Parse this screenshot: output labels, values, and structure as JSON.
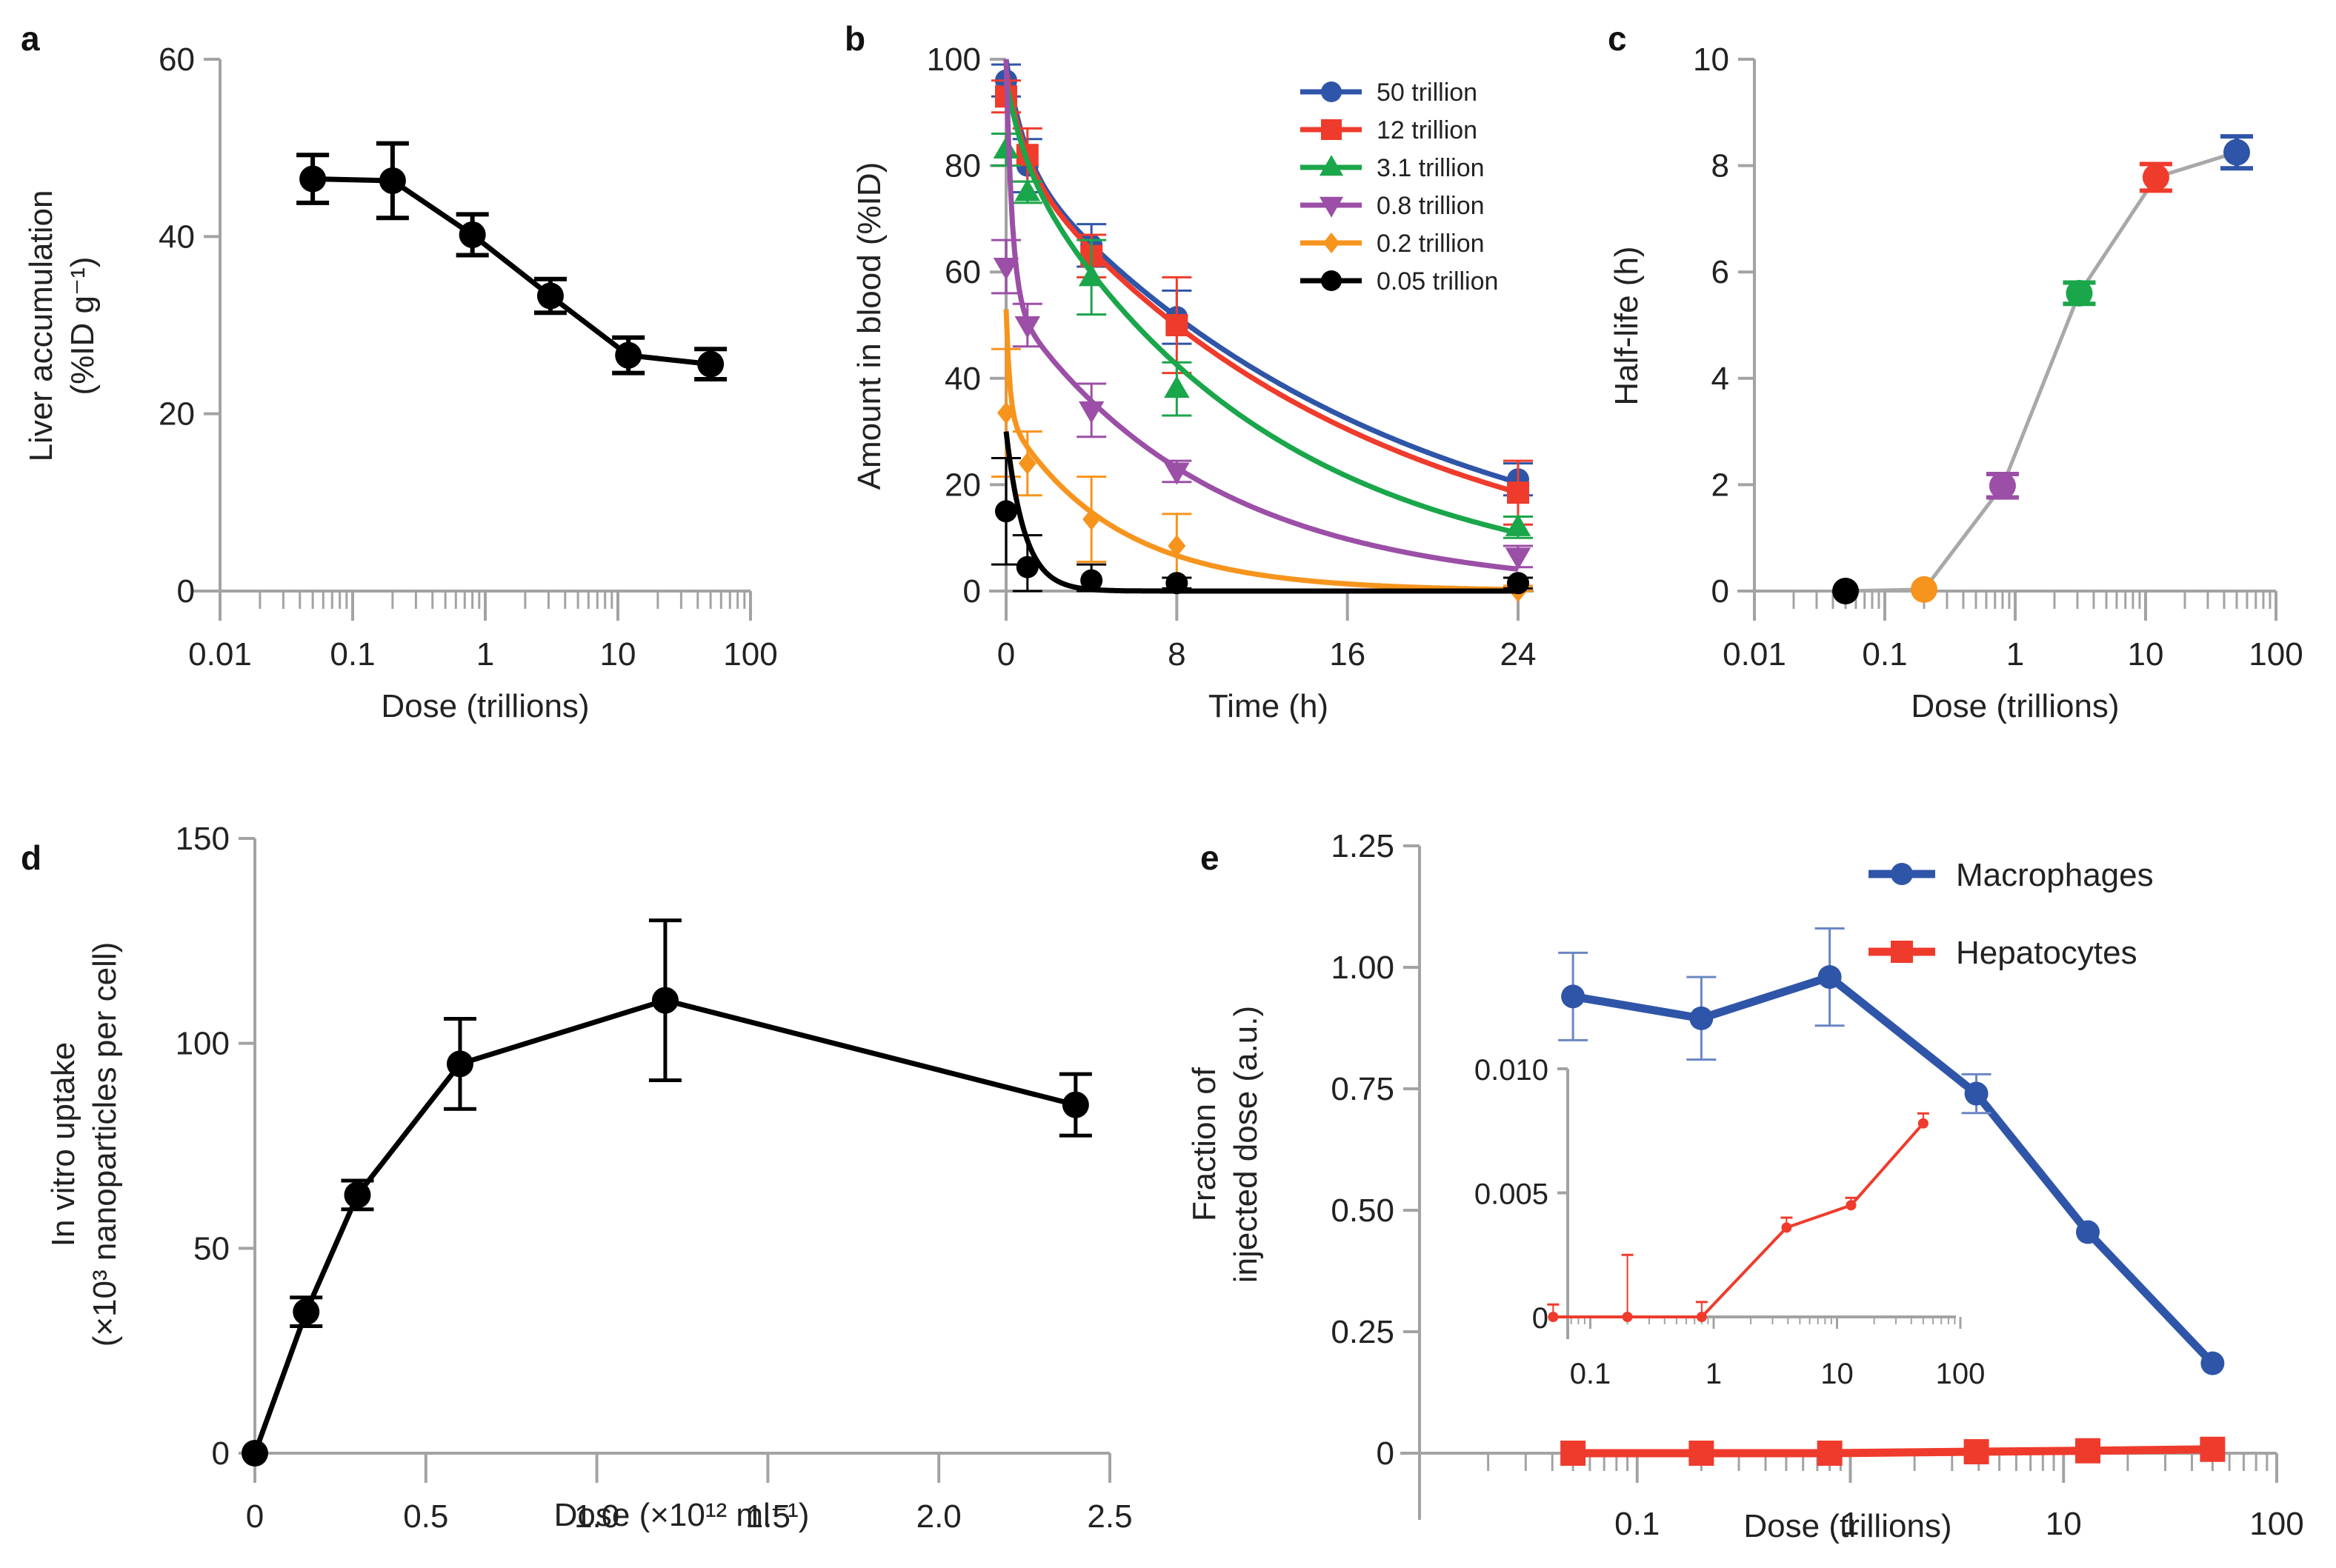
{
  "figure": {
    "panels": [
      "a",
      "b",
      "c",
      "d",
      "e"
    ]
  },
  "chart_data": [
    {
      "id": "a",
      "panel_label": "a",
      "type": "line",
      "xscale": "log",
      "xlabel": "Dose (trillions)",
      "ylabel_line1": "Liver accumulation",
      "ylabel_line2": "(%ID g⁻¹)",
      "xlim": [
        0.01,
        100
      ],
      "ylim": [
        0,
        60
      ],
      "xticks": [
        0.01,
        0.1,
        1,
        10,
        100
      ],
      "xtick_labels": [
        "0.01",
        "0.1",
        "1",
        "10",
        "100"
      ],
      "yticks": [
        0,
        20,
        40,
        60
      ],
      "ytick_labels": [
        "0",
        "20",
        "40",
        "60"
      ],
      "grid": false,
      "series": [
        {
          "name": "Liver accumulation",
          "color": "#000000",
          "marker": "circle",
          "x": [
            0.05,
            0.2,
            0.8,
            3.1,
            12,
            50
          ],
          "y": [
            46.5,
            46.3,
            40.2,
            33.3,
            26.6,
            25.6
          ],
          "err": [
            2.7,
            4.2,
            2.3,
            1.9,
            2.0,
            1.7
          ]
        }
      ]
    },
    {
      "id": "b",
      "panel_label": "b",
      "type": "line",
      "xscale": "linear",
      "xlabel": "Time (h)",
      "ylabel_line1": "Amount in blood (%ID)",
      "xlim": [
        0,
        24
      ],
      "ylim": [
        0,
        100
      ],
      "xticks": [
        0,
        8,
        16,
        24
      ],
      "xtick_labels": [
        "0",
        "8",
        "16",
        "24"
      ],
      "yticks": [
        0,
        20,
        40,
        60,
        80,
        100
      ],
      "ytick_labels": [
        "0",
        "20",
        "40",
        "60",
        "80",
        "100"
      ],
      "grid": false,
      "legend_position": "top-right",
      "series": [
        {
          "name": "50 trillion",
          "color": "#2f55a8",
          "marker": "circle",
          "x": [
            0,
            1,
            4,
            8,
            24
          ],
          "y": [
            96,
            80,
            65,
            51.5,
            21
          ],
          "err": [
            3,
            5,
            4,
            5,
            3
          ],
          "fit": {
            "A": 18,
            "alpha": 1.2,
            "B": 82,
            "beta": 0.058
          }
        },
        {
          "name": "12 trillion",
          "color": "#ef3b2c",
          "marker": "square",
          "x": [
            0,
            1,
            4,
            8,
            24
          ],
          "y": [
            93,
            82,
            63,
            50,
            18.5
          ],
          "err": [
            3,
            5,
            4,
            9,
            6
          ],
          "fit": {
            "A": 16,
            "alpha": 1.2,
            "B": 82,
            "beta": 0.062
          }
        },
        {
          "name": "3.1 trillion",
          "color": "#1aa64a",
          "marker": "triangle-up",
          "x": [
            0,
            1,
            4,
            8,
            24
          ],
          "y": [
            83,
            75,
            59,
            38,
            12
          ],
          "err": [
            3,
            2,
            7,
            5,
            2
          ],
          "fit": {
            "A": 12,
            "alpha": 1.2,
            "B": 84,
            "beta": 0.085
          }
        },
        {
          "name": "0.8 trillion",
          "color": "#9b4fa6",
          "marker": "triangle-down",
          "x": [
            0,
            1,
            4,
            8,
            24
          ],
          "y": [
            61,
            50,
            34,
            22.5,
            6.5
          ],
          "err": [
            5,
            4,
            5,
            2,
            2
          ],
          "fit": {
            "A": 45,
            "alpha": 3.5,
            "B": 55,
            "beta": 0.108
          }
        },
        {
          "name": "0.2 trillion",
          "color": "#f7941d",
          "marker": "diamond",
          "x": [
            0,
            1,
            4,
            8,
            24
          ],
          "y": [
            33.5,
            24,
            13.5,
            8.5,
            0
          ],
          "err": [
            12,
            6,
            8,
            6,
            1
          ],
          "fit": {
            "A": 20,
            "alpha": 6,
            "B": 33,
            "beta": 0.2
          }
        },
        {
          "name": "0.05 trillion",
          "color": "#000000",
          "marker": "circle",
          "x": [
            0,
            1,
            4,
            8,
            24
          ],
          "y": [
            15,
            4.5,
            2,
            1.5,
            1.5
          ],
          "err": [
            10,
            6,
            3,
            1,
            1
          ],
          "fit": {
            "A": 0,
            "alpha": 1,
            "B": 30,
            "beta": 1.15
          }
        }
      ]
    },
    {
      "id": "c",
      "panel_label": "c",
      "type": "line",
      "xscale": "log",
      "xlabel": "Dose (trillions)",
      "ylabel_line1": "Half-life (h)",
      "xlim": [
        0.01,
        100
      ],
      "ylim": [
        0,
        10
      ],
      "xticks": [
        0.01,
        0.1,
        1,
        10,
        100
      ],
      "xtick_labels": [
        "0.01",
        "0.1",
        "1",
        "10",
        "100"
      ],
      "yticks": [
        0,
        2,
        4,
        6,
        8,
        10
      ],
      "ytick_labels": [
        "0",
        "2",
        "4",
        "6",
        "8",
        "10"
      ],
      "grid": false,
      "line_color": "#a8a8a8",
      "series": [
        {
          "name": "Half-life",
          "x": [
            0.05,
            0.2,
            0.8,
            3.1,
            12,
            50
          ],
          "y": [
            0.0,
            0.03,
            1.98,
            5.6,
            7.78,
            8.25
          ],
          "err": [
            0,
            0,
            0.22,
            0.2,
            0.25,
            0.3
          ],
          "point_colors": [
            "#000000",
            "#f7941d",
            "#9b4fa6",
            "#1aa64a",
            "#ef3b2c",
            "#2f55a8"
          ]
        }
      ]
    },
    {
      "id": "d",
      "panel_label": "d",
      "type": "line",
      "xscale": "linear",
      "xlabel": "Dose (×10¹² ml⁻¹)",
      "ylabel_line1": "In vitro uptake",
      "ylabel_line2": "(×10³ nanoparticles per cell)",
      "xlim": [
        0,
        2.5
      ],
      "ylim": [
        0,
        150
      ],
      "xticks": [
        0,
        0.5,
        1.0,
        1.5,
        2.0,
        2.5
      ],
      "xtick_labels": [
        "0",
        "0.5",
        "1.0",
        "1.5",
        "2.0",
        "2.5"
      ],
      "yticks": [
        0,
        50,
        100,
        150
      ],
      "ytick_labels": [
        "0",
        "50",
        "100",
        "150"
      ],
      "grid": false,
      "series": [
        {
          "name": "In vitro uptake",
          "color": "#000000",
          "marker": "circle",
          "x": [
            0,
            0.15,
            0.3,
            0.6,
            1.2,
            2.4
          ],
          "y": [
            0,
            34.5,
            63,
            95,
            110.5,
            85
          ],
          "err": [
            0,
            3.5,
            3.5,
            11,
            19.5,
            7.5
          ]
        }
      ]
    },
    {
      "id": "e",
      "panel_label": "e",
      "type": "line",
      "xscale": "log",
      "xlabel": "Dose (trillions)",
      "ylabel_line1": "Fraction of",
      "ylabel_line2": "injected dose (a.u.)",
      "xlim": [
        0.01,
        100
      ],
      "ylim": [
        0,
        1.25
      ],
      "xticks": [
        0.1,
        1,
        10,
        100
      ],
      "xtick_labels": [
        "0.1",
        "1",
        "10",
        "100"
      ],
      "yticks": [
        0,
        0.25,
        0.5,
        0.75,
        1.0,
        1.25
      ],
      "ytick_labels": [
        "0",
        "0.25",
        "0.50",
        "0.75",
        "1.00",
        "1.25"
      ],
      "grid": false,
      "legend_position": "top-right",
      "series": [
        {
          "name": "Macrophages",
          "color": "#2f55a8",
          "marker": "circle",
          "x": [
            0.05,
            0.2,
            0.8,
            3.9,
            13,
            50
          ],
          "y": [
            0.94,
            0.895,
            0.98,
            0.74,
            0.455,
            0.185
          ],
          "err": [
            0.09,
            0.085,
            0.1,
            0.04,
            0,
            0
          ]
        },
        {
          "name": "Hepatocytes",
          "color": "#ef3b2c",
          "marker": "square",
          "x": [
            0.05,
            0.2,
            0.8,
            3.9,
            13,
            50
          ],
          "y": [
            0,
            0,
            0,
            0.003,
            0.005,
            0.008
          ],
          "err": [
            0,
            0,
            0,
            0,
            0,
            0
          ]
        }
      ],
      "inset": {
        "series_name": "Hepatocytes",
        "color": "#ef3b2c",
        "xscale": "log",
        "xlim": [
          0.01,
          100
        ],
        "ylim": [
          0,
          0.01
        ],
        "xticks": [
          0.1,
          1,
          10,
          100
        ],
        "xtick_labels": [
          "0.1",
          "1",
          "10",
          "100"
        ],
        "yticks": [
          0,
          0.005,
          0.01
        ],
        "ytick_labels": [
          "0",
          "0.005",
          "0.010"
        ],
        "x": [
          0.05,
          0.2,
          0.8,
          3.9,
          13,
          50
        ],
        "y": [
          0,
          0,
          0,
          0.0036,
          0.0045,
          0.0078
        ],
        "err": [
          0.0005,
          0.0025,
          0.0006,
          0.0004,
          0.0003,
          0.0004
        ]
      }
    }
  ]
}
